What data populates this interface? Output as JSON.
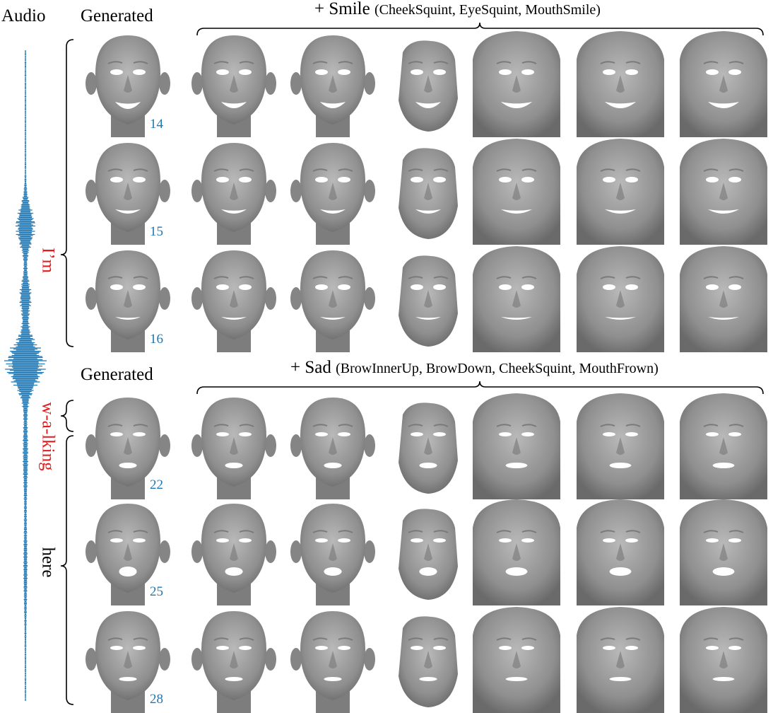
{
  "headers": {
    "audio": "Audio",
    "generated_top": "Generated",
    "generated_bottom": "Generated"
  },
  "groups": [
    {
      "title_main": "+ Smile",
      "title_sub": "(CheekSquint, EyeSquint, MouthSmile)",
      "words": [
        {
          "text": "I’m",
          "color": "#e41a1c"
        }
      ],
      "frames": [
        "14",
        "15",
        "16"
      ]
    },
    {
      "title_main": "+ Sad",
      "title_sub": "(BrowInnerUp, BrowDown, CheekSquint, MouthFrown)",
      "words": [
        {
          "text": "w-a-lking",
          "color": "#e41a1c"
        },
        {
          "text": "here",
          "color": "#000000"
        }
      ],
      "frames": [
        "22",
        "25",
        "28"
      ]
    }
  ],
  "colors": {
    "waveform": "#1f77b4",
    "frame_number": "#1f77b4",
    "highlight_word": "#e41a1c",
    "face_shade": "#8c8c8c"
  }
}
